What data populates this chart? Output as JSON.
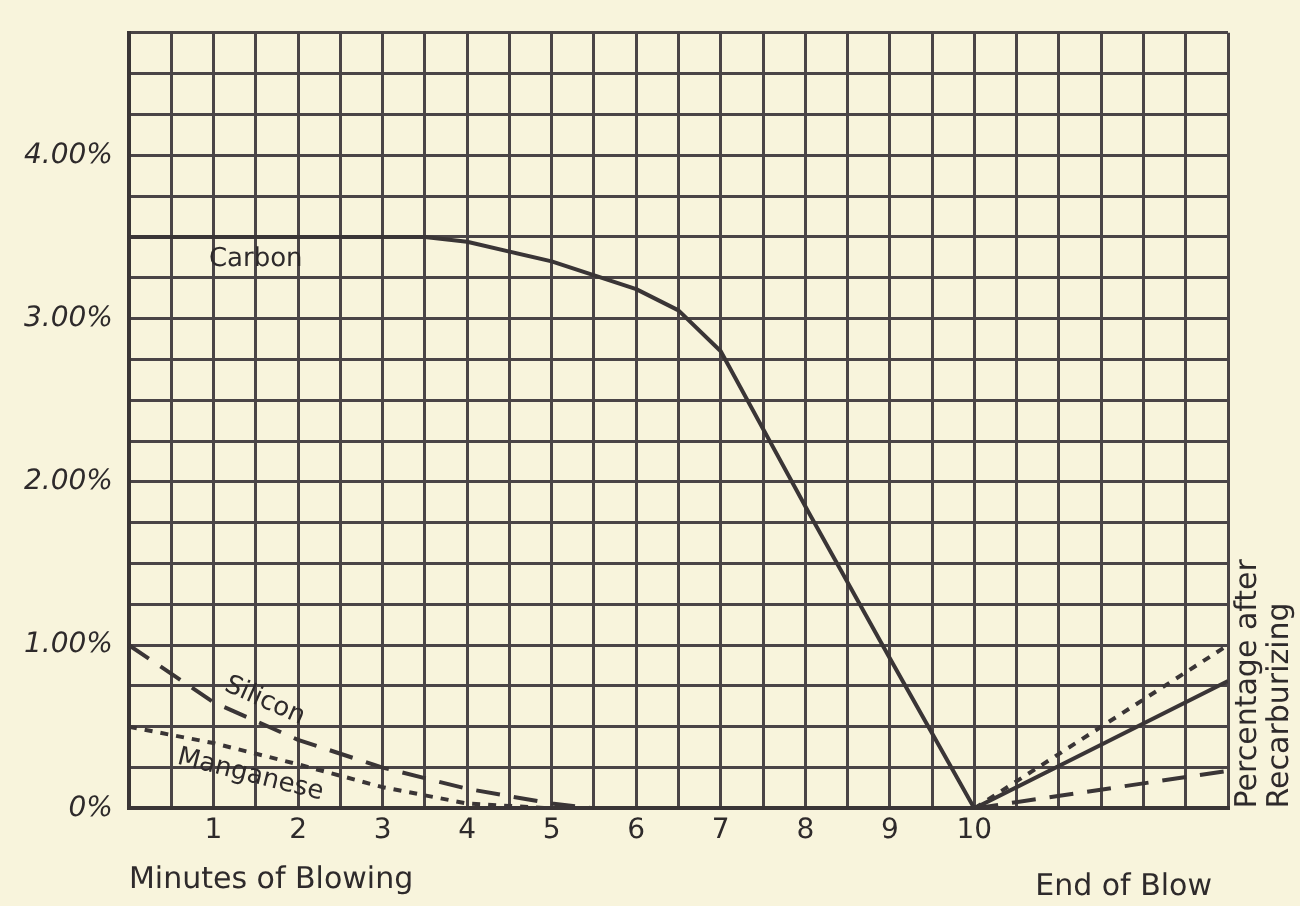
{
  "chart_data": {
    "type": "line",
    "xlabel": "Minutes of Blowing",
    "annotations": [
      "End of Blow",
      "Percentage after Recarburizing"
    ],
    "xlim": [
      0,
      13
    ],
    "ylim": [
      0,
      4.75
    ],
    "xticks": [
      {
        "value": 0,
        "label": null
      },
      {
        "value": 0.5,
        "label": null
      },
      1,
      {
        "value": 1.5,
        "label": null
      },
      2,
      {
        "value": 2.5,
        "label": null
      },
      3,
      {
        "value": 3.5,
        "label": null
      },
      4,
      {
        "value": 4.5,
        "label": null
      },
      5,
      {
        "value": 5.5,
        "label": null
      },
      6,
      {
        "value": 6.5,
        "label": null
      },
      7,
      {
        "value": 7.5,
        "label": null
      },
      8,
      {
        "value": 8.5,
        "label": null
      },
      9,
      {
        "value": 9.5,
        "label": null
      },
      10,
      {
        "value": 10.5,
        "label": null
      },
      {
        "value": 11,
        "label": null
      },
      {
        "value": 11.5,
        "label": null
      },
      {
        "value": 12,
        "label": null
      },
      {
        "value": 12.5,
        "label": null
      },
      {
        "value": 13,
        "label": null
      }
    ],
    "yticks": [
      {
        "value": 0,
        "label": "0%"
      },
      {
        "value": 0.25,
        "label": null
      },
      {
        "value": 0.5,
        "label": null
      },
      {
        "value": 0.75,
        "label": null
      },
      {
        "value": 1,
        "label": "1.00%"
      },
      {
        "value": 1.25,
        "label": null
      },
      {
        "value": 1.5,
        "label": null
      },
      {
        "value": 1.75,
        "label": null
      },
      {
        "value": 2,
        "label": "2.00%"
      },
      {
        "value": 2.25,
        "label": null
      },
      {
        "value": 2.5,
        "label": null
      },
      {
        "value": 2.75,
        "label": null
      },
      {
        "value": 3,
        "label": "3.00%"
      },
      {
        "value": 3.25,
        "label": null
      },
      {
        "value": 3.5,
        "label": null
      },
      {
        "value": 3.75,
        "label": null
      },
      {
        "value": 4,
        "label": "4.00%"
      },
      {
        "value": 4.25,
        "label": null
      },
      {
        "value": 4.5,
        "label": null
      },
      {
        "value": 4.75,
        "label": null
      }
    ],
    "grid": true,
    "legend": false,
    "marker": "none",
    "series": [
      {
        "name": "Carbon",
        "color": "#3a3536",
        "line_style": "solid",
        "x": [
          0,
          1,
          2,
          3.5,
          4,
          5,
          6,
          6.5,
          7,
          8,
          9,
          10,
          13
        ],
        "values": [
          3.5,
          3.5,
          3.5,
          3.5,
          3.47,
          3.35,
          3.18,
          3.05,
          2.8,
          1.85,
          0.92,
          0,
          0.78
        ]
      },
      {
        "name": "Silicon",
        "color": "#3a3536",
        "line_style": "dashed",
        "x": [
          0,
          1,
          2,
          3,
          4,
          5,
          5.5,
          8,
          10,
          13
        ],
        "values": [
          1.0,
          0.65,
          0.42,
          0.25,
          0.12,
          0.03,
          0,
          null,
          0,
          0.23
        ]
      },
      {
        "name": "Manganese",
        "color": "#3a3536",
        "line_style": "dotted",
        "x": [
          0,
          1,
          2,
          3,
          4,
          5,
          7,
          10,
          13
        ],
        "values": [
          0.5,
          0.4,
          0.27,
          0.13,
          0.03,
          0,
          null,
          0,
          1.0
        ]
      }
    ]
  }
}
